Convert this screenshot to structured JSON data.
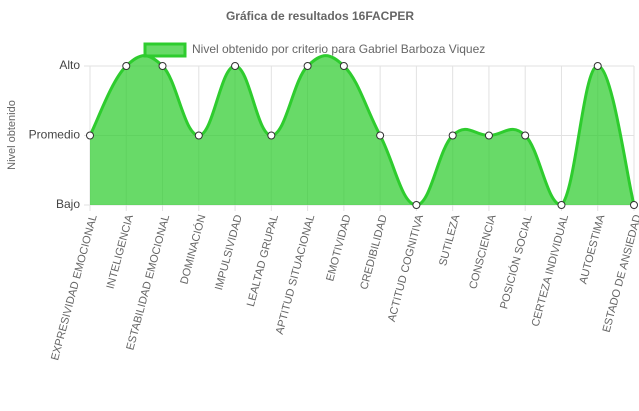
{
  "chart_data": {
    "type": "line",
    "title": "Gráfica de resultados 16FACPER",
    "y_label": "Nivel obtenido",
    "categories": [
      "EXPRESIVIDAD EMOCIONAL",
      "INTELIGENCIA",
      "ESTABILIDAD EMOCIONAL",
      "DOMINACIÓN",
      "IMPULSIVIDAD",
      "LEALTAD GRUPAL",
      "APTITUD SITUACIONAL",
      "EMOTIVIDAD",
      "CREDIBILIDAD",
      "ACTITUD COGNITIVA",
      "SUTILEZA",
      "CONSCIENCIA",
      "POSICIÓN SOCIAL",
      "CERTEZA INDIVIDUAL",
      "AUTOESTIMA",
      "ESTADO DE ANSIEDAD"
    ],
    "series": [
      {
        "name": "Nivel obtenido por criterio para Gabriel Barboza Viquez",
        "color": "#2ecc2e",
        "fill": true,
        "values": [
          2,
          3,
          3,
          2,
          3,
          2,
          3,
          3,
          2,
          1,
          2,
          2,
          2,
          1,
          3,
          1
        ]
      }
    ],
    "ylim": [
      1,
      3
    ],
    "yticks": [
      {
        "value": 1,
        "label": "Bajo"
      },
      {
        "value": 2,
        "label": "Promedio"
      },
      {
        "value": 3,
        "label": "Alto"
      }
    ],
    "grid": true
  }
}
